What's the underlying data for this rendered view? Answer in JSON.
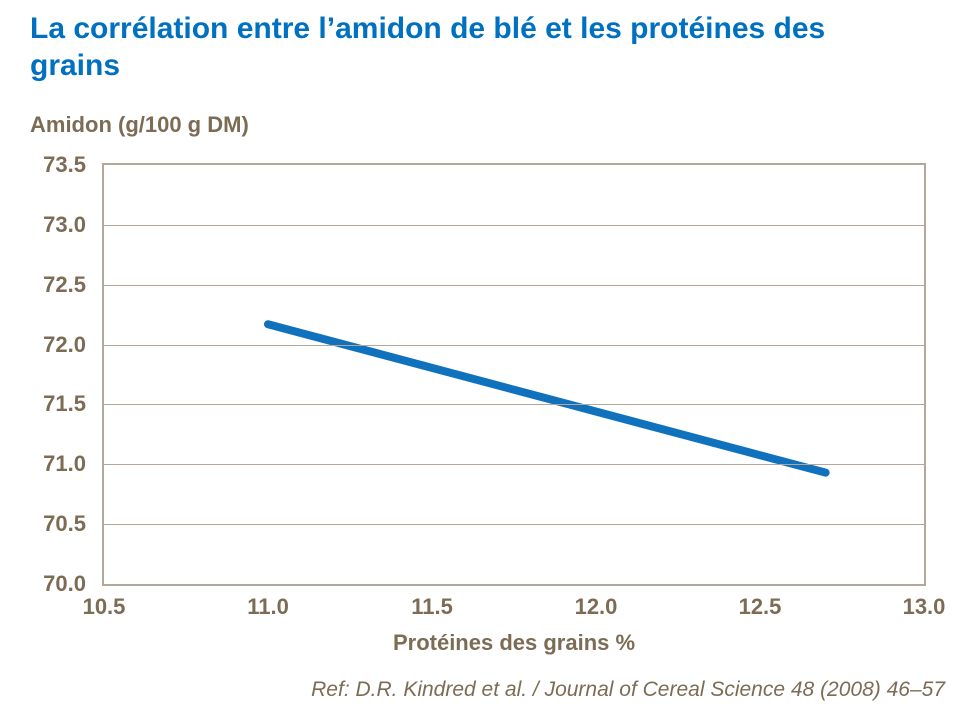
{
  "title": "La corrélation entre l’amidon de blé et les protéines des grains",
  "reference": "Ref: D.R. Kindred et al. / Journal of Cereal Science 48 (2008) 46–57",
  "colors": {
    "title": "#0070C0",
    "line": "#1072BC",
    "axis_text": "#7C6C55",
    "grid": "#B3A79A",
    "background": "#FFFFFF"
  },
  "chart_data": {
    "type": "line",
    "title": "La corrélation entre l’amidon de blé et les protéines des grains",
    "xlabel": "Protéines des grains %",
    "ylabel": "Amidon (g/100 g DM)",
    "xlim": [
      10.5,
      13.0
    ],
    "ylim": [
      70.0,
      73.5
    ],
    "xticks": [
      10.5,
      11.0,
      11.5,
      12.0,
      12.5,
      13.0
    ],
    "yticks": [
      70.0,
      70.5,
      71.0,
      71.5,
      72.0,
      72.5,
      73.0,
      73.5
    ],
    "tick_decimals": 1,
    "grid": "horizontal",
    "legend": "none",
    "series": [
      {
        "x": [
          11.0,
          12.7
        ],
        "y": [
          72.17,
          70.93
        ]
      }
    ]
  }
}
